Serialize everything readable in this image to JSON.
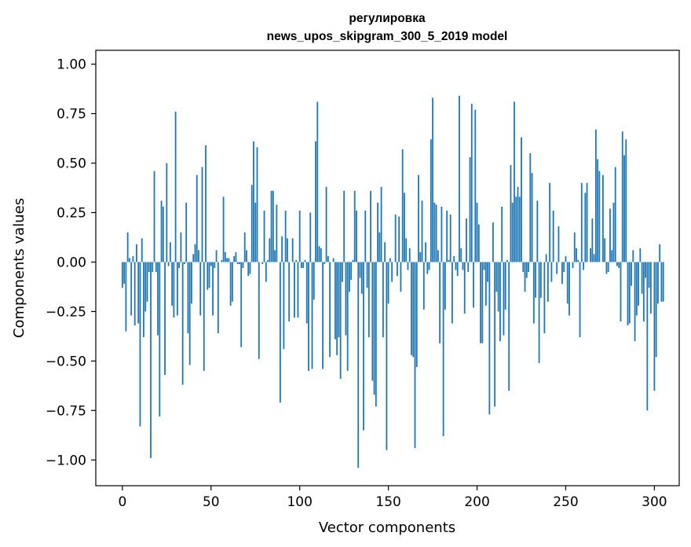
{
  "chart_data": {
    "type": "bar",
    "title": [
      "регулировка",
      "news_upos_skipgram_300_5_2019 model"
    ],
    "xlabel": "Vector components",
    "ylabel": "Components values",
    "xlim": [
      -15,
      314
    ],
    "ylim": [
      -1.13,
      1.07
    ],
    "xticks": [
      {
        "value": 0,
        "label": "0"
      },
      {
        "value": 50,
        "label": "50"
      },
      {
        "value": 100,
        "label": "100"
      },
      {
        "value": 150,
        "label": "150"
      },
      {
        "value": 200,
        "label": "200"
      },
      {
        "value": 250,
        "label": "250"
      },
      {
        "value": 300,
        "label": "300"
      }
    ],
    "yticks": [
      {
        "value": 1.0,
        "label": "1.00"
      },
      {
        "value": 0.75,
        "label": "0.75"
      },
      {
        "value": 0.5,
        "label": "0.50"
      },
      {
        "value": 0.25,
        "label": "0.25"
      },
      {
        "value": 0.0,
        "label": "0.00"
      },
      {
        "value": -0.25,
        "label": "−0.25"
      },
      {
        "value": -0.5,
        "label": "−0.50"
      },
      {
        "value": -0.75,
        "label": "−0.75"
      },
      {
        "value": -1.0,
        "label": "−1.00"
      }
    ],
    "grid": false,
    "bar_color": "#1f77b4",
    "series": [
      {
        "values": [
          -0.13,
          -0.11,
          -0.35,
          0.15,
          0.02,
          -0.27,
          0.03,
          -0.32,
          0.09,
          -0.31,
          -0.83,
          0.12,
          -0.38,
          -0.25,
          -0.2,
          -0.05,
          -0.99,
          -0.05,
          0.46,
          -0.05,
          -0.37,
          -0.78,
          0.31,
          0.28,
          -0.57,
          0.5,
          -0.02,
          0.1,
          -0.22,
          -0.28,
          0.76,
          -0.27,
          -0.03,
          0.15,
          -0.62,
          -0.01,
          0.3,
          -0.36,
          -0.52,
          -0.21,
          0.04,
          0.09,
          0.44,
          0.06,
          -0.27,
          0.48,
          -0.55,
          0.59,
          -0.14,
          -0.13,
          -0.02,
          -0.27,
          -0.03,
          0.06,
          -0.36,
          0.0,
          0.01,
          0.33,
          0.05,
          0.02,
          0.02,
          -0.22,
          -0.2,
          0.03,
          0.05,
          -0.01,
          -0.01,
          -0.43,
          -0.03,
          0.15,
          0.06,
          -0.07,
          -0.06,
          0.39,
          0.61,
          0.3,
          0.58,
          -0.49,
          0.0,
          -0.01,
          0.26,
          -0.1,
          0.01,
          0.12,
          0.36,
          0.36,
          0.06,
          0.29,
          0.0,
          -0.71,
          0.13,
          -0.44,
          0.26,
          0.12,
          -0.3,
          0.0,
          0.12,
          -0.28,
          0.01,
          -0.28,
          0.26,
          -0.03,
          -0.03,
          0.01,
          -0.31,
          -0.55,
          0.25,
          -0.54,
          -0.19,
          0.61,
          0.81,
          0.08,
          0.07,
          -0.54,
          -0.01,
          0.38,
          0.03,
          -0.48,
          0.0,
          0.02,
          -0.39,
          -0.47,
          -0.38,
          -0.59,
          -0.1,
          0.36,
          -0.37,
          -0.55,
          -0.15,
          -0.09,
          0.01,
          0.36,
          0.26,
          -1.04,
          -0.08,
          -0.16,
          -0.85,
          0.26,
          -0.13,
          -0.38,
          0.36,
          -0.6,
          -0.67,
          -0.73,
          0.3,
          0.15,
          0.38,
          -0.38,
          0.1,
          -0.95,
          -0.21,
          0.02,
          -0.1,
          0.0,
          0.24,
          -0.07,
          0.23,
          -0.15,
          0.57,
          0.35,
          0.12,
          -0.04,
          0.07,
          -0.47,
          -0.48,
          -0.94,
          -0.53,
          0.44,
          0.05,
          0.31,
          -0.24,
          0.1,
          -0.06,
          -0.04,
          0.62,
          0.83,
          0.3,
          0.29,
          0.06,
          -0.41,
          0.28,
          -0.88,
          -0.24,
          0.26,
          0.01,
          0.24,
          -0.31,
          0.03,
          -0.04,
          -0.07,
          0.84,
          0.07,
          -0.04,
          -0.26,
          0.22,
          -0.05,
          0.53,
          0.8,
          -0.23,
          0.77,
          0.3,
          0.19,
          -0.41,
          -0.41,
          -0.04,
          -0.22,
          -0.1,
          -0.77,
          0.0,
          0.2,
          -0.73,
          -0.15,
          -0.25,
          -0.4,
          0.28,
          -0.37,
          -0.24,
          0.01,
          -0.65,
          0.49,
          0.3,
          0.81,
          0.33,
          0.38,
          0.33,
          0.63,
          -0.05,
          -0.15,
          -0.08,
          -0.05,
          0.55,
          0.45,
          -0.31,
          -0.18,
          0.31,
          -0.51,
          -0.18,
          0.0,
          -0.36,
          0.04,
          -0.2,
          0.4,
          -0.1,
          0.26,
          0.0,
          -0.06,
          0.18,
          0.0,
          -0.11,
          -0.05,
          0.03,
          -0.21,
          -0.27,
          0.0,
          -0.03,
          0.15,
          0.07,
          0.01,
          -0.38,
          0.4,
          -0.04,
          0.35,
          0.4,
          0.0,
          0.07,
          0.22,
          0.04,
          0.67,
          0.52,
          0.46,
          0.0,
          0.44,
          0.12,
          -0.06,
          -0.05,
          0.27,
          0.06,
          0.3,
          0.48,
          -0.02,
          -0.03,
          -0.3,
          0.66,
          0.54,
          0.62,
          -0.32,
          -0.31,
          -0.12,
          0.06,
          -0.4,
          -0.27,
          -0.22,
          0.07,
          -0.16,
          -0.3,
          -0.08,
          -0.75,
          -0.13,
          -0.26,
          0.0,
          -0.65,
          -0.48,
          -0.21,
          0.09,
          -0.2,
          -0.2
        ]
      }
    ]
  }
}
